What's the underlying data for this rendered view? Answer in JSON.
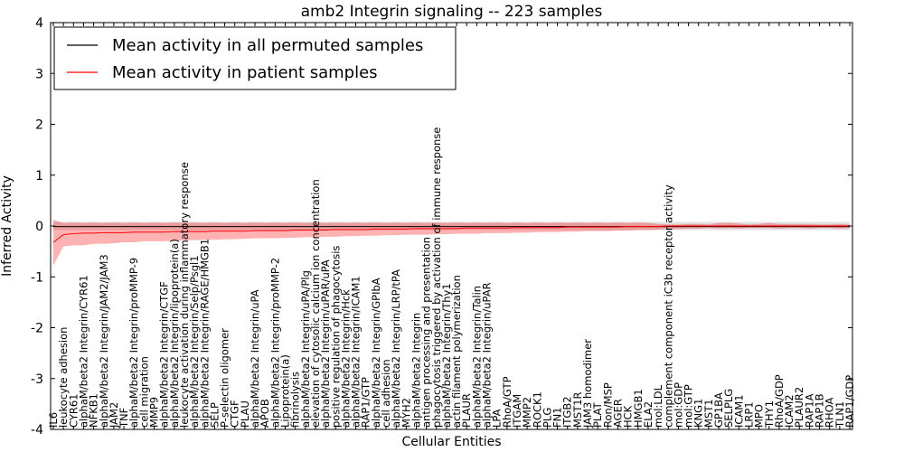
{
  "chart_data": {
    "type": "line",
    "title": "amb2 Integrin signaling -- 223 samples",
    "xlabel": "Cellular Entities",
    "ylabel": "Inferred Activity",
    "ylim": [
      -4,
      4
    ],
    "yticks": [
      -4,
      -3,
      -2,
      -1,
      0,
      1,
      2,
      3,
      4
    ],
    "legend": {
      "placement": "top-left",
      "entries": [
        {
          "label": "Mean activity in all permuted samples",
          "color": "#000000"
        },
        {
          "label": "Mean activity in patient samples",
          "color": "#ff0000"
        }
      ]
    },
    "categories": [
      "IL6",
      "leukocyte adhesion",
      "CYR61",
      "alphaM/beta2 Integrin/CYR61",
      "NFKB1",
      "alphaM/beta2 Integrin/JAM2/JAM3",
      "JAM2",
      "TNF",
      "alphaM/beta2 Integrin/proMMP-9",
      "cell migration",
      "MMP9",
      "alphaM/beta2 Integrin/CTGF",
      "alphaM/beta2 Integrin/lipoprotein(a)",
      "leukocyte activation during inflammatory response",
      "alphaM/beta2 Integrin/Selp/Psgl1",
      "alphaM/beta2 Integrin/RAGE/HMGB1",
      "SELP",
      "P-selectin oligomer",
      "CTGF",
      "PLAU",
      "alphaM/beta2 Integrin/uPA",
      "APOB",
      "alphaM/beta2 Integrin/proMMP-2",
      "Lipoprotein(a)",
      "fibrinolysis",
      "alphaM/beta2 Integrin/uPA/Plg",
      "elevation of cytosolic calcium ion concentration",
      "alphaM/beta2 Integrin/uPAR/uPA",
      "positive regulation of phagocytosis",
      "alphaM/beta2 Integrin/Hck",
      "alphaM/beta2 Integrin/ICAM1",
      "RAP1/GTP",
      "alphaM/beta2 Integrin/GPIbA",
      "cell adhesion",
      "alphaM/beta2 Integrin/LRP/tPA",
      "MYH2",
      "alphaM/beta2 Integrin",
      "antigen processing and presentation",
      "phagocytosis triggered by activation of immune response",
      "alphaM/beta2 Integrin/Thy1",
      "actin filament polymerization",
      "PLAUR",
      "alphaM/beta2 Integrin/Talin",
      "alphaM/beta2 Integrin/uPAR",
      "LPA",
      "RhoA/GTP",
      "ITGAM",
      "MMP2",
      "ROCK1",
      "PLG",
      "FN1",
      "ITGB2",
      "MST1R",
      "JAM3 homodimer",
      "PLAT",
      "Ron/MSP",
      "AGER",
      "HCK",
      "HMGB1",
      "ELA2",
      "mol:LDL",
      "complement component iC3b receptor activity",
      "mol:GDP",
      "mol:GTP",
      "KNG1",
      "MST1",
      "GP1BA",
      "SELPLG",
      "ICAM1",
      "LRP1",
      "MPO",
      "THY1",
      "RhoA/GDP",
      "ICAM2",
      "PLAUR2",
      "RAP1A",
      "RAP1B",
      "RHOA",
      "TLN1",
      "RAP1/GDP"
    ],
    "series": [
      {
        "name": "Mean activity in all permuted samples",
        "color": "#000000",
        "values": [
          -0.01,
          -0.01,
          -0.01,
          -0.01,
          -0.01,
          -0.01,
          -0.01,
          -0.01,
          -0.01,
          -0.01,
          -0.01,
          -0.01,
          -0.01,
          -0.01,
          -0.01,
          -0.01,
          -0.01,
          -0.01,
          -0.01,
          -0.01,
          -0.01,
          -0.01,
          -0.01,
          -0.01,
          -0.01,
          -0.01,
          -0.01,
          -0.01,
          -0.01,
          -0.01,
          -0.01,
          -0.01,
          -0.01,
          -0.01,
          -0.01,
          -0.01,
          -0.01,
          -0.01,
          -0.01,
          -0.01,
          -0.01,
          -0.01,
          -0.01,
          -0.01,
          -0.01,
          -0.01,
          -0.01,
          -0.01,
          -0.01,
          -0.01,
          -0.01,
          -0.01,
          -0.01,
          -0.01,
          -0.01,
          -0.01,
          -0.01,
          -0.01,
          -0.01,
          -0.01,
          -0.01,
          -0.01,
          -0.01,
          -0.01,
          -0.01,
          -0.01,
          -0.01,
          -0.01,
          -0.01,
          -0.01,
          -0.01,
          -0.01,
          -0.01,
          -0.01,
          -0.01,
          -0.01,
          -0.01,
          -0.01,
          -0.01,
          -0.01
        ],
        "band": {
          "lower": -0.08,
          "upper": 0.08
        }
      },
      {
        "name": "Mean activity in patient samples",
        "color": "#ff0000",
        "values": [
          -0.32,
          -0.17,
          -0.15,
          -0.14,
          -0.14,
          -0.13,
          -0.13,
          -0.13,
          -0.12,
          -0.12,
          -0.12,
          -0.12,
          -0.11,
          -0.11,
          -0.11,
          -0.11,
          -0.1,
          -0.1,
          -0.1,
          -0.1,
          -0.09,
          -0.09,
          -0.09,
          -0.09,
          -0.08,
          -0.08,
          -0.08,
          -0.08,
          -0.07,
          -0.07,
          -0.07,
          -0.07,
          -0.06,
          -0.06,
          -0.06,
          -0.06,
          -0.05,
          -0.05,
          -0.05,
          -0.05,
          -0.05,
          -0.04,
          -0.04,
          -0.04,
          -0.04,
          -0.04,
          -0.03,
          -0.03,
          -0.03,
          -0.03,
          -0.03,
          -0.02,
          -0.02,
          -0.02,
          -0.02,
          -0.02,
          -0.02,
          -0.01,
          -0.01,
          -0.01,
          -0.01,
          0,
          0,
          0,
          0,
          0,
          0,
          0,
          0,
          0,
          0,
          0,
          0,
          0,
          0,
          0,
          0,
          0,
          0,
          0
        ],
        "band": {
          "lower": [
            -0.78,
            -0.4,
            -0.38,
            -0.38,
            -0.35,
            -0.35,
            -0.34,
            -0.32,
            -0.32,
            -0.3,
            -0.3,
            -0.3,
            -0.29,
            -0.28,
            -0.28,
            -0.27,
            -0.27,
            -0.26,
            -0.26,
            -0.25,
            -0.24,
            -0.24,
            -0.24,
            -0.23,
            -0.23,
            -0.22,
            -0.22,
            -0.21,
            -0.21,
            -0.2,
            -0.2,
            -0.19,
            -0.19,
            -0.18,
            -0.18,
            -0.17,
            -0.17,
            -0.17,
            -0.16,
            -0.16,
            -0.15,
            -0.15,
            -0.15,
            -0.14,
            -0.14,
            -0.14,
            -0.13,
            -0.13,
            -0.12,
            -0.12,
            -0.12,
            -0.11,
            -0.11,
            -0.1,
            -0.1,
            -0.1,
            -0.09,
            -0.09,
            -0.08,
            -0.08,
            -0.07,
            -0.06,
            -0.06,
            -0.05,
            -0.05,
            -0.04,
            -0.05,
            -0.04,
            -0.05,
            -0.04,
            -0.04,
            -0.04,
            -0.05,
            -0.04,
            -0.04,
            -0.05,
            -0.04,
            -0.04,
            -0.05,
            -0.04
          ],
          "upper": [
            0.12,
            0.06,
            0.07,
            0.06,
            0.07,
            0.06,
            0.07,
            0.06,
            0.07,
            0.06,
            0.07,
            0.06,
            0.07,
            0.06,
            0.07,
            0.06,
            0.07,
            0.06,
            0.07,
            0.06,
            0.07,
            0.06,
            0.07,
            0.06,
            0.07,
            0.06,
            0.07,
            0.06,
            0.07,
            0.06,
            0.07,
            0.06,
            0.07,
            0.06,
            0.07,
            0.06,
            0.07,
            0.06,
            0.07,
            0.06,
            0.07,
            0.06,
            0.07,
            0.06,
            0.07,
            0.06,
            0.07,
            0.06,
            0.07,
            0.06,
            0.07,
            0.06,
            0.07,
            0.06,
            0.07,
            0.06,
            0.07,
            0.06,
            0.07,
            0.06,
            0.04,
            0.03,
            0.03,
            0.04,
            0.04,
            0.03,
            0.06,
            0.06,
            0.05,
            0.03,
            0.04,
            0.06,
            0.04,
            0.04,
            0.04,
            0.04,
            0.03,
            0.03,
            0.04,
            0.03
          ]
        }
      }
    ],
    "grid": false
  }
}
